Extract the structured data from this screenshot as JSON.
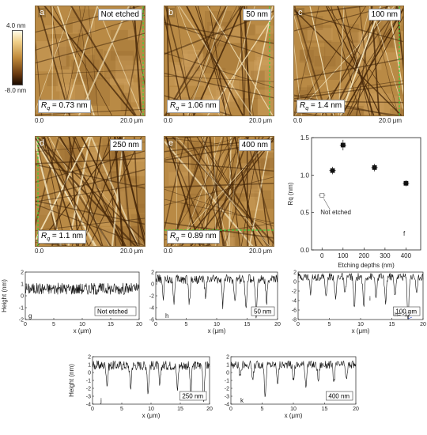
{
  "colorbar": {
    "max_label": "4.0 nm",
    "min_label": "-8.0 nm"
  },
  "afm_panels": [
    {
      "letter": "a",
      "depth_label": "Not etched",
      "rq_label": "Rq",
      "rq_value": "= 0.73 nm",
      "x_start": "0.0",
      "x_end": "20.0 μm"
    },
    {
      "letter": "b",
      "depth_label": "50 nm",
      "rq_label": "Rq",
      "rq_value": "= 1.06 nm",
      "x_start": "0.0",
      "x_end": "20.0 μm"
    },
    {
      "letter": "c",
      "depth_label": "100 nm",
      "rq_label": "Rq",
      "rq_value": "= 1.4 nm",
      "x_start": "0.0",
      "x_end": "20.0 μm"
    },
    {
      "letter": "d",
      "depth_label": "250 nm",
      "rq_label": "Rq",
      "rq_value": "= 1.1 nm",
      "x_start": "0.0",
      "x_end": "20.0 μm"
    },
    {
      "letter": "e",
      "depth_label": "400 nm",
      "rq_label": "Rq",
      "rq_value": "= 0.89 nm",
      "x_start": "0.0",
      "x_end": "20.0 μm"
    }
  ],
  "chart_data": [
    {
      "type": "scatter",
      "panel": "f",
      "xlabel": "Etching depths (nm)",
      "ylabel": "Rq (nm)",
      "xlim": [
        -50,
        470
      ],
      "ylim": [
        0.0,
        1.5
      ],
      "x_ticks": [
        0,
        100,
        200,
        300,
        400
      ],
      "y_ticks": [
        0.0,
        0.5,
        1.0,
        1.5
      ],
      "points": [
        {
          "x": 0,
          "y": 0.73,
          "err": 0.03,
          "marker": "open"
        },
        {
          "x": 50,
          "y": 1.06,
          "err": 0.05,
          "marker": "filled"
        },
        {
          "x": 100,
          "y": 1.4,
          "err": 0.07,
          "marker": "filled"
        },
        {
          "x": 250,
          "y": 1.1,
          "err": 0.05,
          "marker": "filled"
        },
        {
          "x": 400,
          "y": 0.89,
          "err": 0.04,
          "marker": "filled"
        }
      ],
      "annotation": "Not etched"
    },
    {
      "type": "line",
      "panel": "g",
      "tag": "Not etched",
      "ylabel": "Height (nm)",
      "xlabel": "x (μm)",
      "xlim": [
        0,
        20
      ],
      "ylim": [
        -2,
        2
      ],
      "y_ticks": [
        -2,
        -1,
        0,
        1,
        2
      ],
      "x_ticks": [
        0,
        5,
        10,
        15,
        20
      ],
      "baseline": 0.6,
      "amp": 0.5,
      "dips": []
    },
    {
      "type": "line",
      "panel": "h",
      "tag": "50 nm",
      "ylabel": "",
      "xlabel": "x (μm)",
      "xlim": [
        0,
        20
      ],
      "ylim": [
        -6,
        2
      ],
      "y_ticks": [
        -6,
        -4,
        -2,
        0,
        2
      ],
      "x_ticks": [
        0,
        5,
        10,
        15,
        20
      ],
      "baseline": 0.8,
      "amp": 0.8,
      "dips": [
        [
          1.2,
          -2.2
        ],
        [
          3.0,
          -2.8
        ],
        [
          5.5,
          -3.2
        ],
        [
          8.2,
          -2.5
        ],
        [
          11.0,
          -3.5
        ],
        [
          13.0,
          -2.4
        ],
        [
          14.8,
          -4.2
        ],
        [
          16.5,
          -5.8
        ],
        [
          18.2,
          -2.8
        ]
      ]
    },
    {
      "type": "line",
      "panel": "i",
      "tag": "100 nm",
      "ylabel": "",
      "xlabel": "x (μm)",
      "xlim": [
        0,
        20
      ],
      "ylim": [
        -8,
        2
      ],
      "y_ticks": [
        -8,
        -6,
        -4,
        -2,
        0,
        2
      ],
      "x_ticks": [
        0,
        5,
        10,
        15,
        20
      ],
      "baseline": 1.0,
      "amp": 0.8,
      "dips": [
        [
          2.0,
          -2.5
        ],
        [
          4.5,
          -3.5
        ],
        [
          6.0,
          -4.0
        ],
        [
          7.5,
          -3.0
        ],
        [
          9.0,
          -6.0
        ],
        [
          10.5,
          -5.2
        ],
        [
          12.5,
          -3.8
        ],
        [
          14.0,
          -4.5
        ],
        [
          15.5,
          -3.2
        ],
        [
          17.6,
          -8.0
        ],
        [
          19.0,
          -2.8
        ]
      ],
      "annotation": "h= -12"
    },
    {
      "type": "line",
      "panel": "j",
      "tag": "250 nm",
      "ylabel": "Height (nm)",
      "xlabel": "x (μm)",
      "xlim": [
        0,
        20
      ],
      "ylim": [
        -4,
        2
      ],
      "y_ticks": [
        -4,
        -3,
        -2,
        -1,
        0,
        1,
        2
      ],
      "x_ticks": [
        0,
        5,
        10,
        15,
        20
      ],
      "baseline": 0.9,
      "amp": 0.6,
      "dips": [
        [
          2.5,
          -1.5
        ],
        [
          6.5,
          -2.0
        ],
        [
          9.5,
          -2.5
        ],
        [
          11.5,
          -1.8
        ],
        [
          14.5,
          -2.2
        ],
        [
          16.8,
          -2.8
        ],
        [
          19.0,
          -3.5
        ]
      ]
    },
    {
      "type": "line",
      "panel": "k",
      "tag": "400 nm",
      "ylabel": "",
      "xlabel": "x (μm)",
      "xlim": [
        0,
        20
      ],
      "ylim": [
        -4,
        2
      ],
      "y_ticks": [
        -4,
        -3,
        -2,
        -1,
        0,
        1,
        2
      ],
      "x_ticks": [
        0,
        5,
        10,
        15,
        20
      ],
      "baseline": 1.0,
      "amp": 0.5,
      "dips": [
        [
          1.5,
          -0.8
        ],
        [
          3.5,
          -1.0
        ],
        [
          5.5,
          -3.0
        ],
        [
          7.5,
          -1.2
        ],
        [
          10.0,
          -1.0
        ],
        [
          12.0,
          -1.5
        ],
        [
          14.0,
          -1.0
        ],
        [
          16.5,
          -1.2
        ],
        [
          18.5,
          -1.0
        ]
      ]
    }
  ]
}
